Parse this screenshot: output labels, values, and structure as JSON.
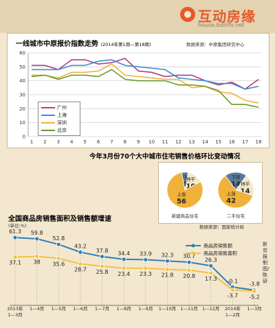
{
  "brand": {
    "name": "互动房缘",
    "url": "house.bdinfo.net"
  },
  "chart1": {
    "title": "一线城市中原报价指数走势",
    "subtitle": "(2014年第1周—第18周)",
    "source": "数据来源：中原集团研究中心"
  },
  "chart2": {
    "title": "今年3月份70个大中城市住宅销售价格环比变动情况",
    "source": "数据来源：国家统计局"
  },
  "chart3": {
    "title": "全国商品房销售面积及销售额增速",
    "unit": "(单位:%)",
    "side_note": "新京报制图/陈研"
  },
  "chart_data": [
    {
      "type": "line",
      "title": "一线城市中原报价指数走势",
      "subtitle": "(2014年第1周—第18周)",
      "x": [
        1,
        2,
        3,
        4,
        5,
        6,
        7,
        8,
        9,
        10,
        11,
        12,
        13,
        14,
        15,
        16,
        17,
        18
      ],
      "ylim": [
        0,
        60
      ],
      "yticks": [
        0,
        10,
        20,
        30,
        40,
        50,
        60
      ],
      "grid": true,
      "series": [
        {
          "name": "广州",
          "color": "#b23a86",
          "values": [
            51,
            51,
            48,
            55,
            55,
            52,
            53,
            56,
            47,
            46,
            43,
            44,
            44,
            40,
            37,
            39,
            34,
            41
          ]
        },
        {
          "name": "上海",
          "color": "#3b8fc9",
          "values": [
            48,
            48,
            48,
            51,
            51,
            54,
            55,
            51,
            50,
            49,
            48,
            42,
            41,
            40,
            38,
            38,
            34,
            36
          ]
        },
        {
          "name": "深圳",
          "color": "#f0b23a",
          "values": [
            44,
            44,
            42,
            46,
            46,
            47,
            52,
            44,
            43,
            42,
            41,
            41,
            35,
            36,
            32,
            31,
            26,
            24
          ]
        },
        {
          "name": "北京",
          "color": "#6a9a2a",
          "values": [
            43,
            44,
            41,
            44,
            44,
            43,
            48,
            41,
            40,
            40,
            40,
            37,
            37,
            36,
            33,
            23,
            23,
            21
          ]
        }
      ]
    },
    {
      "type": "pie",
      "title": "新建商品住宅",
      "slices": [
        {
          "label": "下降",
          "value": 4
        },
        {
          "label": "持平",
          "value": 10
        },
        {
          "label": "上涨",
          "value": 56
        }
      ]
    },
    {
      "type": "pie",
      "title": "二手住宅",
      "slices": [
        {
          "label": "下降",
          "value": 14
        },
        {
          "label": "持平",
          "value": 14
        },
        {
          "label": "上涨",
          "value": 42
        }
      ]
    },
    {
      "type": "line",
      "title": "全国商品房销售面积及销售额增速",
      "categories": [
        "2013年\n1—3月",
        "1—4月",
        "1—5月",
        "1—6月",
        "1—7月",
        "1—8月",
        "1—9月",
        "1—10月",
        "1—11月",
        "1—12月",
        "2014年\n1—2月",
        "1—3月"
      ],
      "series": [
        {
          "name": "商品房销售额",
          "color": "#2f7fb8",
          "values": [
            61.3,
            59.8,
            52.8,
            43.2,
            37.8,
            34.4,
            33.9,
            32.3,
            30.7,
            26.3,
            -0.1,
            -3.8
          ]
        },
        {
          "name": "商品房销售面积",
          "color": "#f1c340",
          "values": [
            37.1,
            38,
            35.6,
            28.7,
            25.8,
            23.4,
            23.3,
            21.8,
            20.8,
            17.3,
            -3.7,
            -5.2
          ]
        }
      ],
      "ylim": [
        -10,
        70
      ]
    }
  ]
}
